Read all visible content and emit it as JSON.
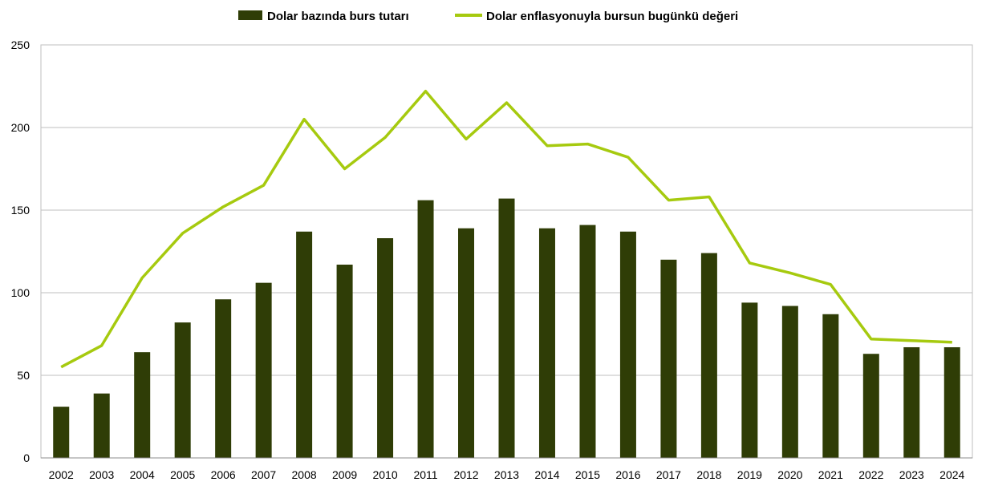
{
  "chart_data": {
    "type": "bar",
    "title": "",
    "xlabel": "",
    "ylabel": "",
    "ylim": [
      0,
      250
    ],
    "yticks": [
      0,
      50,
      100,
      150,
      200,
      250
    ],
    "grid": "horizontal",
    "legend": "top-center",
    "categories": [
      "2002",
      "2003",
      "2004",
      "2005",
      "2006",
      "2007",
      "2008",
      "2009",
      "2010",
      "2011",
      "2012",
      "2013",
      "2014",
      "2015",
      "2016",
      "2017",
      "2018",
      "2019",
      "2020",
      "2021",
      "2022",
      "2023",
      "2024"
    ],
    "series": [
      {
        "name": "Dolar bazında burs tutarı",
        "kind": "bar",
        "color": "#2f3d06",
        "values": [
          31,
          39,
          64,
          82,
          96,
          106,
          137,
          117,
          133,
          156,
          139,
          157,
          139,
          141,
          137,
          120,
          124,
          94,
          92,
          87,
          63,
          67,
          67
        ]
      },
      {
        "name": "Dolar enflasyonuyla bursun bugünkü değeri",
        "kind": "line",
        "color": "#a6ca0f",
        "values": [
          55,
          68,
          109,
          136,
          152,
          165,
          205,
          175,
          194,
          222,
          193,
          215,
          189,
          190,
          182,
          156,
          158,
          118,
          112,
          105,
          72,
          71,
          70
        ]
      }
    ]
  }
}
